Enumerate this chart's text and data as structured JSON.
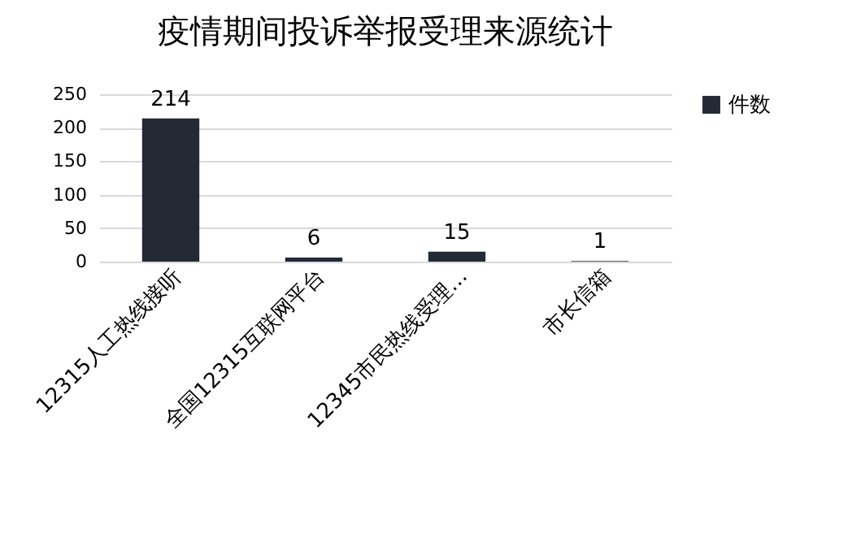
{
  "chart_data": {
    "type": "bar",
    "title": "疫情期间投诉举报受理来源统计",
    "categories": [
      "12315人工热线接听",
      "全国12315互联网平台",
      "12345市民热线受理…",
      "市长信箱"
    ],
    "series": [
      {
        "name": "件数",
        "color": "#232a35",
        "values": [
          214,
          6,
          15,
          1
        ]
      }
    ],
    "ylim": [
      0,
      250
    ],
    "yticks": [
      0,
      50,
      100,
      150,
      200,
      250
    ],
    "grid": "y",
    "legend": "right",
    "data_labels": true
  }
}
